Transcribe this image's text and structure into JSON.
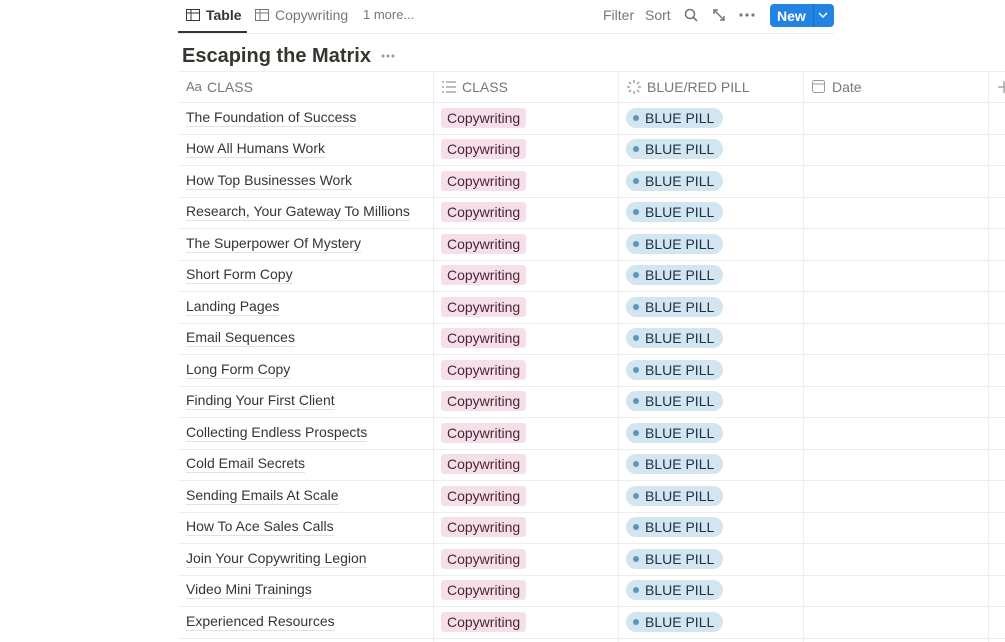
{
  "toolbar": {
    "tabs": [
      "Table",
      "Copywriting",
      "1 more..."
    ],
    "actions": [
      "Filter",
      "Sort"
    ],
    "new_button": "New"
  },
  "title": "Escaping the Matrix",
  "table": {
    "header": [
      {
        "icon": "Aa",
        "label": "CLASS"
      },
      {
        "label": "CLASS"
      },
      {
        "label": "BLUE/RED PILL"
      },
      {
        "label": "Date"
      }
    ],
    "rows": [
      [
        "The Foundation of Success",
        "Copywriting",
        "BLUE PILL"
      ],
      [
        "How All Humans Work",
        "Copywriting",
        "BLUE PILL"
      ],
      [
        "How Top Businesses Work",
        "Copywriting",
        "BLUE PILL"
      ],
      [
        "Research, Your Gateway To Millions",
        "Copywriting",
        "BLUE PILL"
      ],
      [
        "The Superpower Of Mystery",
        "Copywriting",
        "BLUE PILL"
      ],
      [
        "Short Form Copy",
        "Copywriting",
        "BLUE PILL"
      ],
      [
        "Landing Pages",
        "Copywriting",
        "BLUE PILL"
      ],
      [
        "Email Sequences",
        "Copywriting",
        "BLUE PILL"
      ],
      [
        "Long Form Copy",
        "Copywriting",
        "BLUE PILL"
      ],
      [
        "Finding Your First Client",
        "Copywriting",
        "BLUE PILL"
      ],
      [
        "Collecting Endless Prospects",
        "Copywriting",
        "BLUE PILL"
      ],
      [
        "Cold Email Secrets",
        "Copywriting",
        "BLUE PILL"
      ],
      [
        "Sending Emails At Scale",
        "Copywriting",
        "BLUE PILL"
      ],
      [
        "How To Ace Sales Calls",
        "Copywriting",
        "BLUE PILL"
      ],
      [
        "Join Your Copywriting Legion",
        "Copywriting",
        "BLUE PILL"
      ],
      [
        "Video Mini Trainings",
        "Copywriting",
        "BLUE PILL"
      ],
      [
        "Experienced Resources",
        "Copywriting",
        "BLUE PILL"
      ]
    ]
  }
}
